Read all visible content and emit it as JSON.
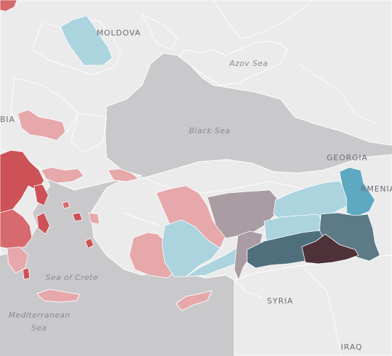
{
  "map": {
    "sea_labels": {
      "azov": "Azov Sea",
      "black": "Black Sea",
      "crete": "Sea of Crete",
      "med_1": "Mediterranean",
      "med_2": "Sea"
    },
    "country_labels": {
      "moldova": "MOLDOVA",
      "serbia_fragment": "BIA",
      "georgia": "GEORGIA",
      "armenia_fragment": "RMENIA",
      "syria": "SYRIA",
      "iraq": "IRAQ"
    }
  },
  "colors": {
    "water": "#c9c9cc",
    "land": "#ebebec",
    "red_strong": "#cc5257",
    "red_medium": "#d66a6e",
    "pink_light": "#e6a8aa",
    "mauve": "#aa9ca3",
    "blue_light": "#abd4df",
    "blue_medium": "#5fa8c2",
    "teal_dark": "#4f6f7d",
    "slate": "#5d7a87",
    "plum_dark": "#4f3139"
  }
}
